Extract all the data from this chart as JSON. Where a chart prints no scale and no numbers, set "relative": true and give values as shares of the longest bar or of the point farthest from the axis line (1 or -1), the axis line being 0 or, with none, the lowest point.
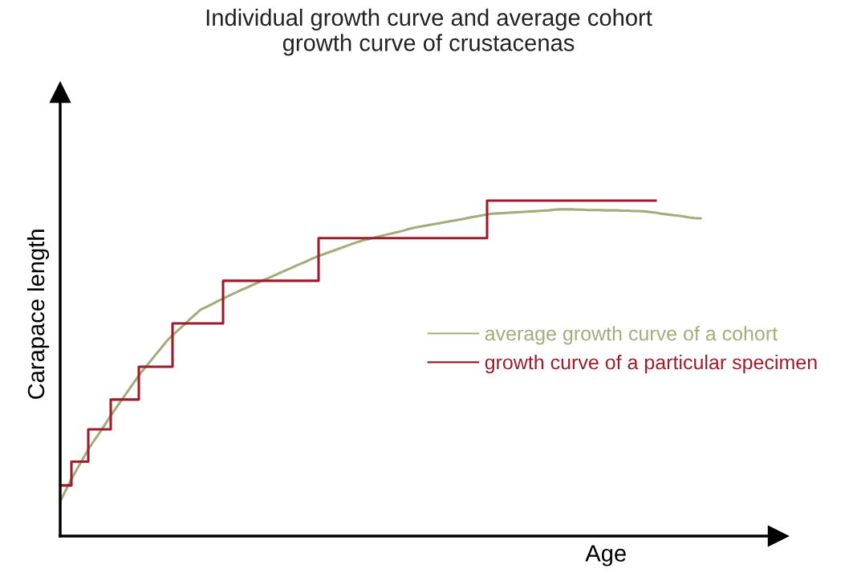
{
  "chart_data": {
    "type": "line",
    "title": "Individual growth curve and average cohort\ngrowth curve of crustacenas",
    "xlabel": "Age",
    "ylabel": "Carapace length",
    "relative": true,
    "legend": "center right",
    "marker": "none",
    "line_style": "solid",
    "categories": [
      null,
      null,
      null,
      null,
      null,
      null,
      null,
      null,
      null,
      null,
      null,
      null,
      null,
      null,
      null,
      null,
      null,
      null,
      null,
      null,
      null,
      null,
      null,
      null,
      null,
      null,
      null,
      null,
      null,
      null,
      null,
      null,
      null,
      null,
      null,
      null,
      null,
      null,
      null,
      null,
      null,
      null,
      null,
      null,
      null,
      null,
      null,
      null,
      null,
      null,
      null,
      null,
      null,
      null,
      null,
      null,
      null,
      null,
      null,
      null,
      null,
      null,
      null,
      null,
      null,
      null,
      null,
      null,
      null,
      null,
      null,
      null,
      null,
      null,
      null,
      null,
      null,
      null,
      null,
      null,
      null,
      null,
      null,
      null,
      null,
      null,
      null,
      null,
      null,
      null,
      null,
      null,
      null,
      null,
      null,
      null,
      null,
      null,
      null,
      null,
      null,
      null,
      null,
      null,
      null,
      null,
      null,
      null,
      null,
      null,
      null,
      null,
      null,
      null,
      null
    ],
    "series": [
      {
        "name": "average growth curve of a cohort",
        "color": "#a3ad7c",
        "values": [
          0.103,
          0.137,
          0.17,
          0.2,
          0.229,
          0.258,
          0.284,
          0.308,
          0.333,
          0.359,
          0.383,
          0.407,
          0.431,
          0.455,
          0.479,
          0.5,
          0.52,
          0.541,
          0.561,
          0.582,
          0.599,
          0.614,
          0.629,
          0.645,
          0.66,
          0.675,
          0.683,
          0.691,
          0.7,
          0.708,
          0.716,
          0.724,
          0.732,
          0.739,
          0.747,
          0.754,
          0.762,
          0.769,
          0.776,
          0.784,
          0.791,
          0.798,
          0.806,
          0.813,
          0.82,
          0.828,
          0.835,
          0.841,
          0.847,
          0.853,
          0.859,
          0.865,
          0.871,
          0.877,
          0.882,
          0.886,
          0.89,
          0.894,
          0.898,
          0.902,
          0.906,
          0.91,
          0.915,
          0.919,
          0.922,
          0.925,
          0.928,
          0.931,
          0.934,
          0.937,
          0.94,
          0.943,
          0.946,
          0.95,
          0.953,
          0.956,
          0.959,
          0.961,
          0.962,
          0.963,
          0.964,
          0.965,
          0.966,
          0.967,
          0.968,
          0.969,
          0.97,
          0.971,
          0.973,
          0.974,
          0.974,
          0.974,
          0.973,
          0.973,
          0.972,
          0.972,
          0.972,
          0.971,
          0.971,
          0.971,
          0.97,
          0.97,
          0.969,
          0.969,
          0.968,
          0.966,
          0.964,
          0.961,
          0.959,
          0.957,
          0.955,
          0.953,
          0.95,
          0.948,
          0.947
        ]
      },
      {
        "name": "growth curve of a particular specimen",
        "type": "step",
        "color": "#9e1b2a",
        "values": [
          0.151,
          0.151,
          0.222,
          0.222,
          0.222,
          0.318,
          0.318,
          0.318,
          0.318,
          0.407,
          0.407,
          0.407,
          0.407,
          0.407,
          0.505,
          0.505,
          0.505,
          0.505,
          0.505,
          0.505,
          0.634,
          0.634,
          0.634,
          0.634,
          0.634,
          0.634,
          0.634,
          0.634,
          0.634,
          0.761,
          0.761,
          0.761,
          0.761,
          0.761,
          0.761,
          0.761,
          0.761,
          0.761,
          0.761,
          0.761,
          0.761,
          0.761,
          0.761,
          0.761,
          0.761,
          0.761,
          0.888,
          0.888,
          0.888,
          0.888,
          0.888,
          0.888,
          0.888,
          0.888,
          0.888,
          0.888,
          0.888,
          0.888,
          0.888,
          0.888,
          0.888,
          0.888,
          0.888,
          0.888,
          0.888,
          0.888,
          0.888,
          0.888,
          0.888,
          0.888,
          0.888,
          0.888,
          0.888,
          0.888,
          0.888,
          0.888,
          1,
          1,
          1,
          1,
          1,
          1,
          1,
          1,
          1,
          1,
          1,
          1,
          1,
          1,
          1,
          1,
          1,
          1,
          1,
          1,
          1,
          1,
          1,
          1,
          1,
          1,
          1,
          1,
          1,
          1,
          1,
          null,
          null,
          null,
          null,
          null,
          null,
          null,
          null
        ]
      }
    ]
  }
}
